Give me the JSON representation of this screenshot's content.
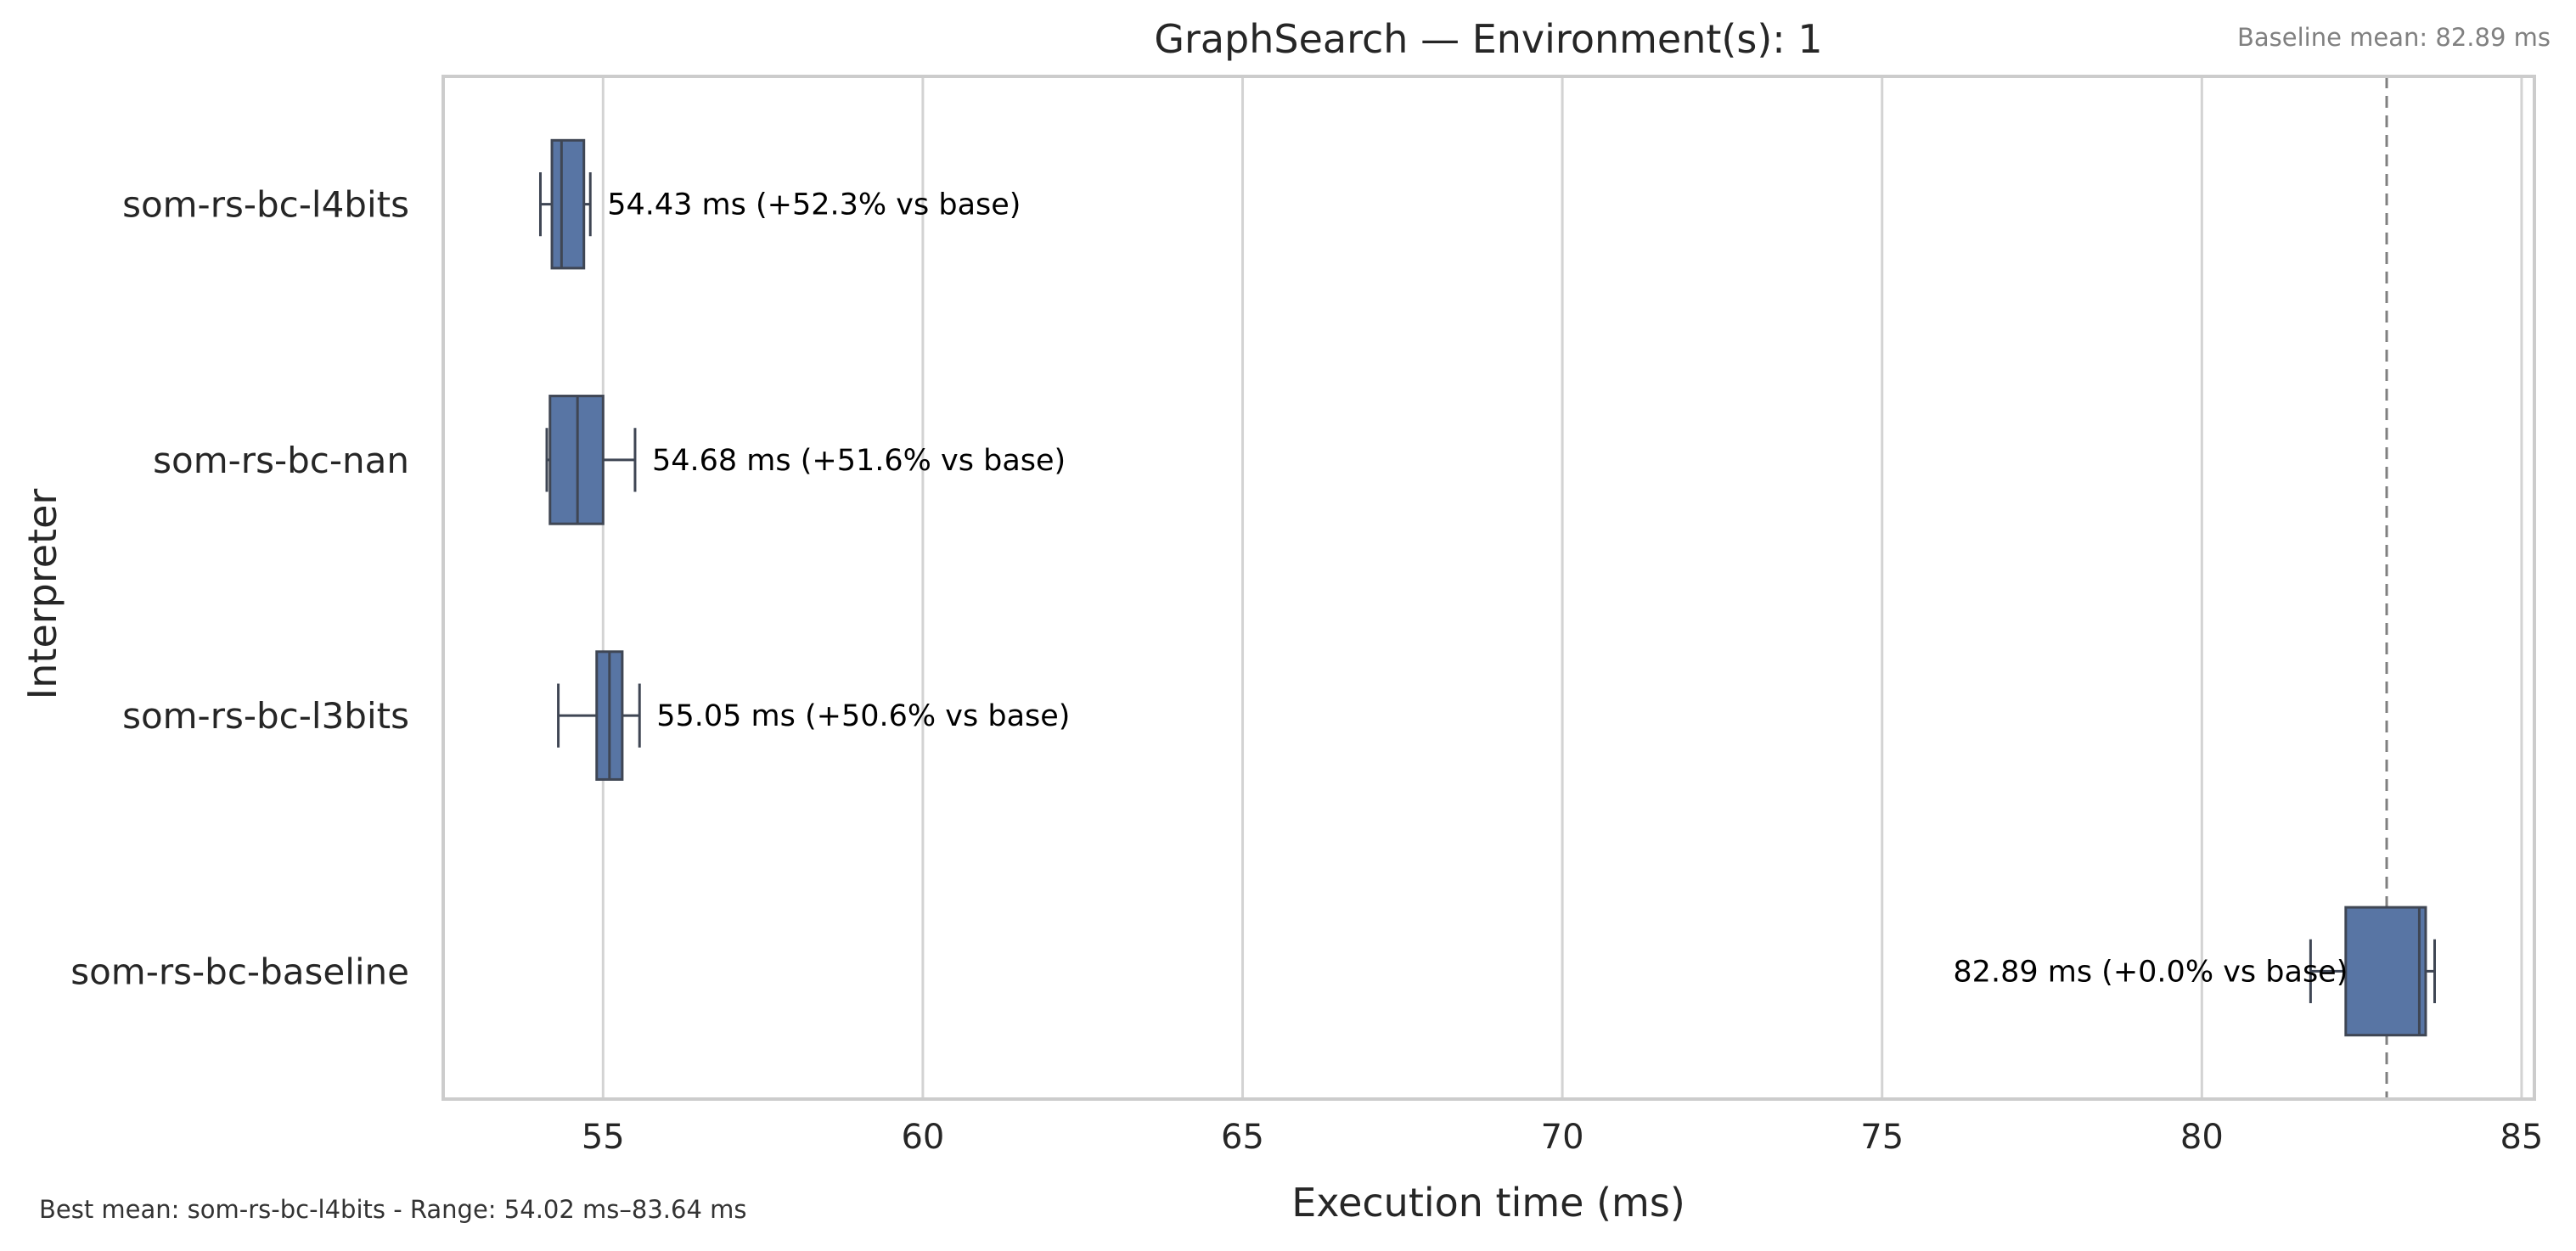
{
  "chart_data": {
    "type": "box",
    "orientation": "horizontal",
    "title": "GraphSearch — Environment(s): 1",
    "xlabel": "Execution time (ms)",
    "ylabel": "Interpreter",
    "xlim": [
      52.5,
      85.2
    ],
    "xticks": [
      55,
      60,
      65,
      70,
      75,
      80,
      85
    ],
    "grid": "vertical",
    "box_color": "#5875a4",
    "baseline_mean": 82.89,
    "baseline_note": "Baseline mean: 82.89 ms",
    "footnote": "Best mean: som-rs-bc-l4bits - Range: 54.02 ms–83.64 ms",
    "series": [
      {
        "category": "som-rs-bc-l4bits",
        "whisker_low": 54.02,
        "q1": 54.2,
        "median": 54.35,
        "q3": 54.7,
        "whisker_high": 54.8,
        "label": "54.43 ms  (+52.3% vs base)"
      },
      {
        "category": "som-rs-bc-nan",
        "whisker_low": 54.12,
        "q1": 54.17,
        "median": 54.6,
        "q3": 55.0,
        "whisker_high": 55.5,
        "label": "54.68 ms  (+51.6% vs base)"
      },
      {
        "category": "som-rs-bc-l3bits",
        "whisker_low": 54.3,
        "q1": 54.9,
        "median": 55.1,
        "q3": 55.3,
        "whisker_high": 55.57,
        "label": "55.05 ms  (+50.6% vs base)"
      },
      {
        "category": "som-rs-bc-baseline",
        "whisker_low": 81.7,
        "q1": 82.25,
        "median": 83.4,
        "q3": 83.5,
        "whisker_high": 83.64,
        "label": "82.89 ms  (+0.0% vs base)"
      }
    ]
  }
}
